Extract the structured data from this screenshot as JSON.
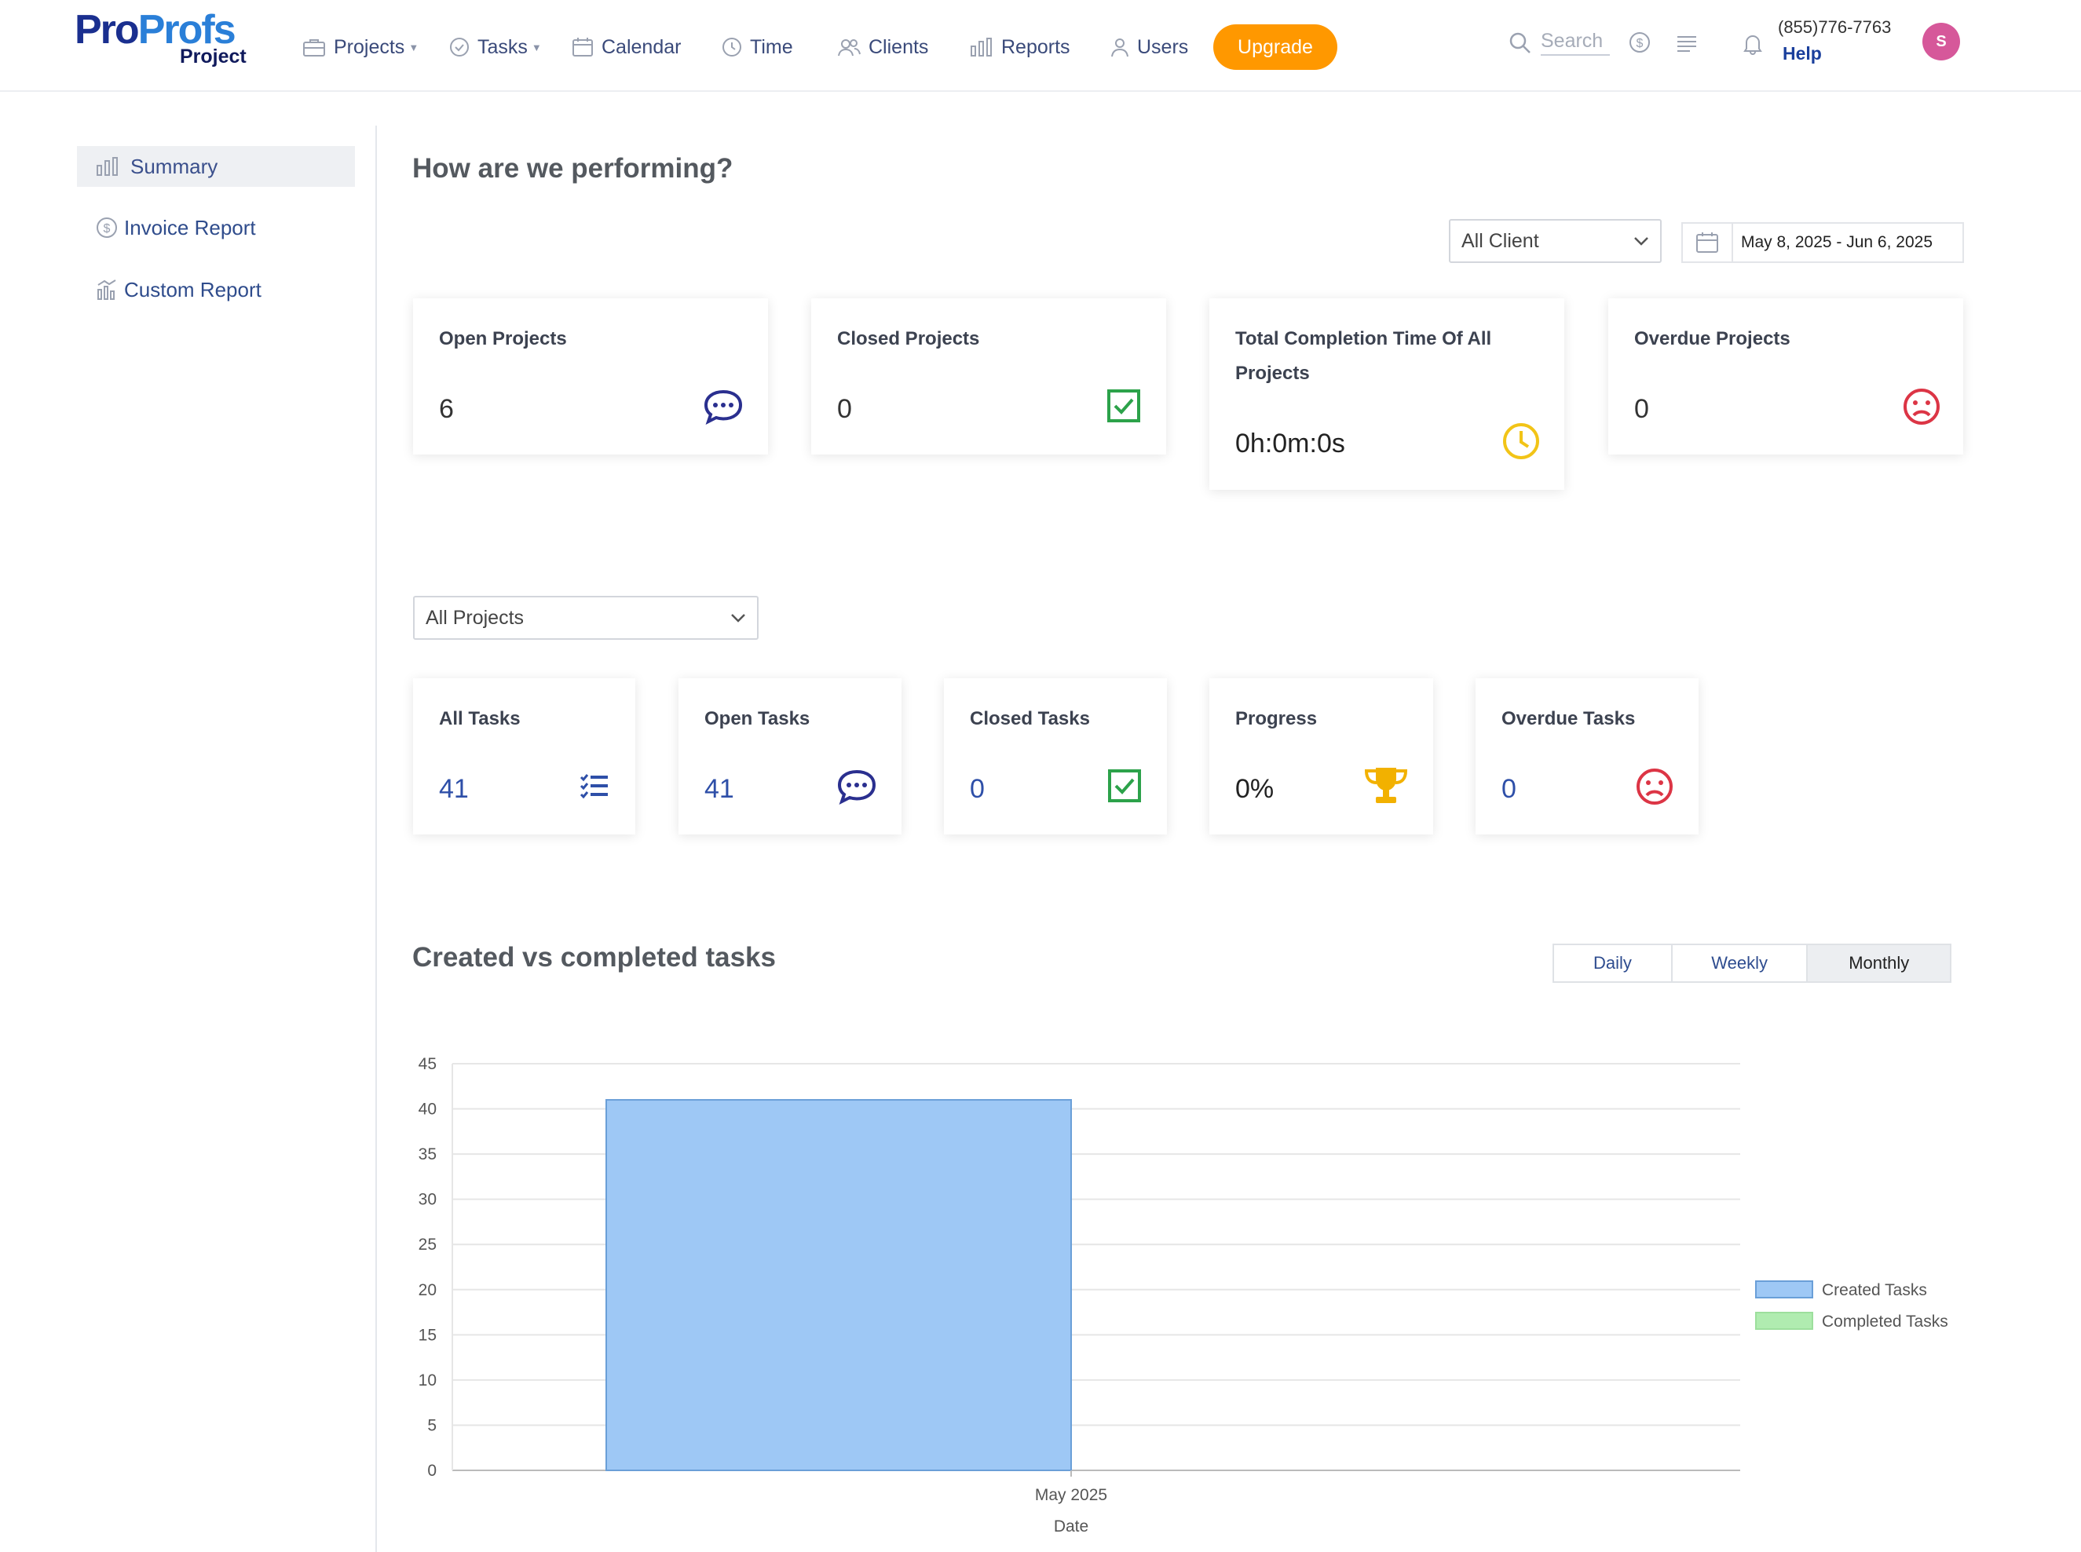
{
  "header": {
    "logo_pro": "Pro",
    "logo_profs": "Profs",
    "logo_sub": "Project",
    "nav": [
      {
        "label": "Projects",
        "icon": "briefcase-icon"
      },
      {
        "label": "Tasks",
        "icon": "check-circle-icon"
      },
      {
        "label": "Calendar",
        "icon": "calendar-icon"
      },
      {
        "label": "Time",
        "icon": "clock-icon"
      },
      {
        "label": "Clients",
        "icon": "clients-icon"
      },
      {
        "label": "Reports",
        "icon": "bar-chart-icon"
      },
      {
        "label": "Users",
        "icon": "user-icon"
      }
    ],
    "upgrade_label": "Upgrade",
    "search_placeholder": "Search",
    "phone": "(855)776-7763",
    "help_label": "Help",
    "avatar_initial": "S"
  },
  "sidebar": {
    "items": [
      {
        "label": "Summary",
        "icon": "bar-chart-icon",
        "active": true
      },
      {
        "label": "Invoice Report",
        "icon": "dollar-icon"
      },
      {
        "label": "Custom Report",
        "icon": "custom-report-icon"
      }
    ]
  },
  "main": {
    "title": "How are we performing?",
    "client_filter": "All Client",
    "date_range": "May 8, 2025 - Jun 6, 2025",
    "project_cards": [
      {
        "title": "Open Projects",
        "value": "6",
        "icon": "chat-bubble-icon",
        "color": "#2a2f8f"
      },
      {
        "title": "Closed Projects",
        "value": "0",
        "icon": "checkbox-icon",
        "color": "#2ca24a"
      },
      {
        "title": "Total Completion Time Of All Projects",
        "value": "0h:0m:0s",
        "icon": "clock-icon",
        "color": "#f2c417"
      },
      {
        "title": "Overdue Projects",
        "value": "0",
        "icon": "sad-face-icon",
        "color": "#dc3545"
      }
    ],
    "project_filter": "All Projects",
    "task_cards": [
      {
        "title": "All Tasks",
        "value": "41",
        "icon": "list-check-icon",
        "color": "#2e4fa8"
      },
      {
        "title": "Open Tasks",
        "value": "41",
        "icon": "chat-bubble-icon",
        "color": "#2a2f8f"
      },
      {
        "title": "Closed Tasks",
        "value": "0",
        "icon": "checkbox-icon",
        "color": "#2ca24a"
      },
      {
        "title": "Progress",
        "value": "0%",
        "icon": "trophy-icon",
        "color": "#f2b100"
      },
      {
        "title": "Overdue Tasks",
        "value": "0",
        "icon": "sad-face-icon",
        "color": "#dc3545"
      }
    ],
    "chart_title": "Created vs completed tasks",
    "toggle": [
      "Daily",
      "Weekly",
      "Monthly"
    ],
    "toggle_active": "Monthly"
  },
  "chart_data": {
    "type": "bar",
    "categories": [
      "May 2025"
    ],
    "series": [
      {
        "name": "Created Tasks",
        "values": [
          41
        ],
        "color": "#9ec8f5"
      },
      {
        "name": "Completed Tasks",
        "values": [
          0
        ],
        "color": "#b0ecb0"
      }
    ],
    "title": "Created vs completed tasks",
    "xlabel": "Date",
    "ylabel": "",
    "ylim": [
      0,
      45
    ],
    "yticks": [
      0,
      5,
      10,
      15,
      20,
      25,
      30,
      35,
      40,
      45
    ],
    "grid": true,
    "legend": "right"
  }
}
